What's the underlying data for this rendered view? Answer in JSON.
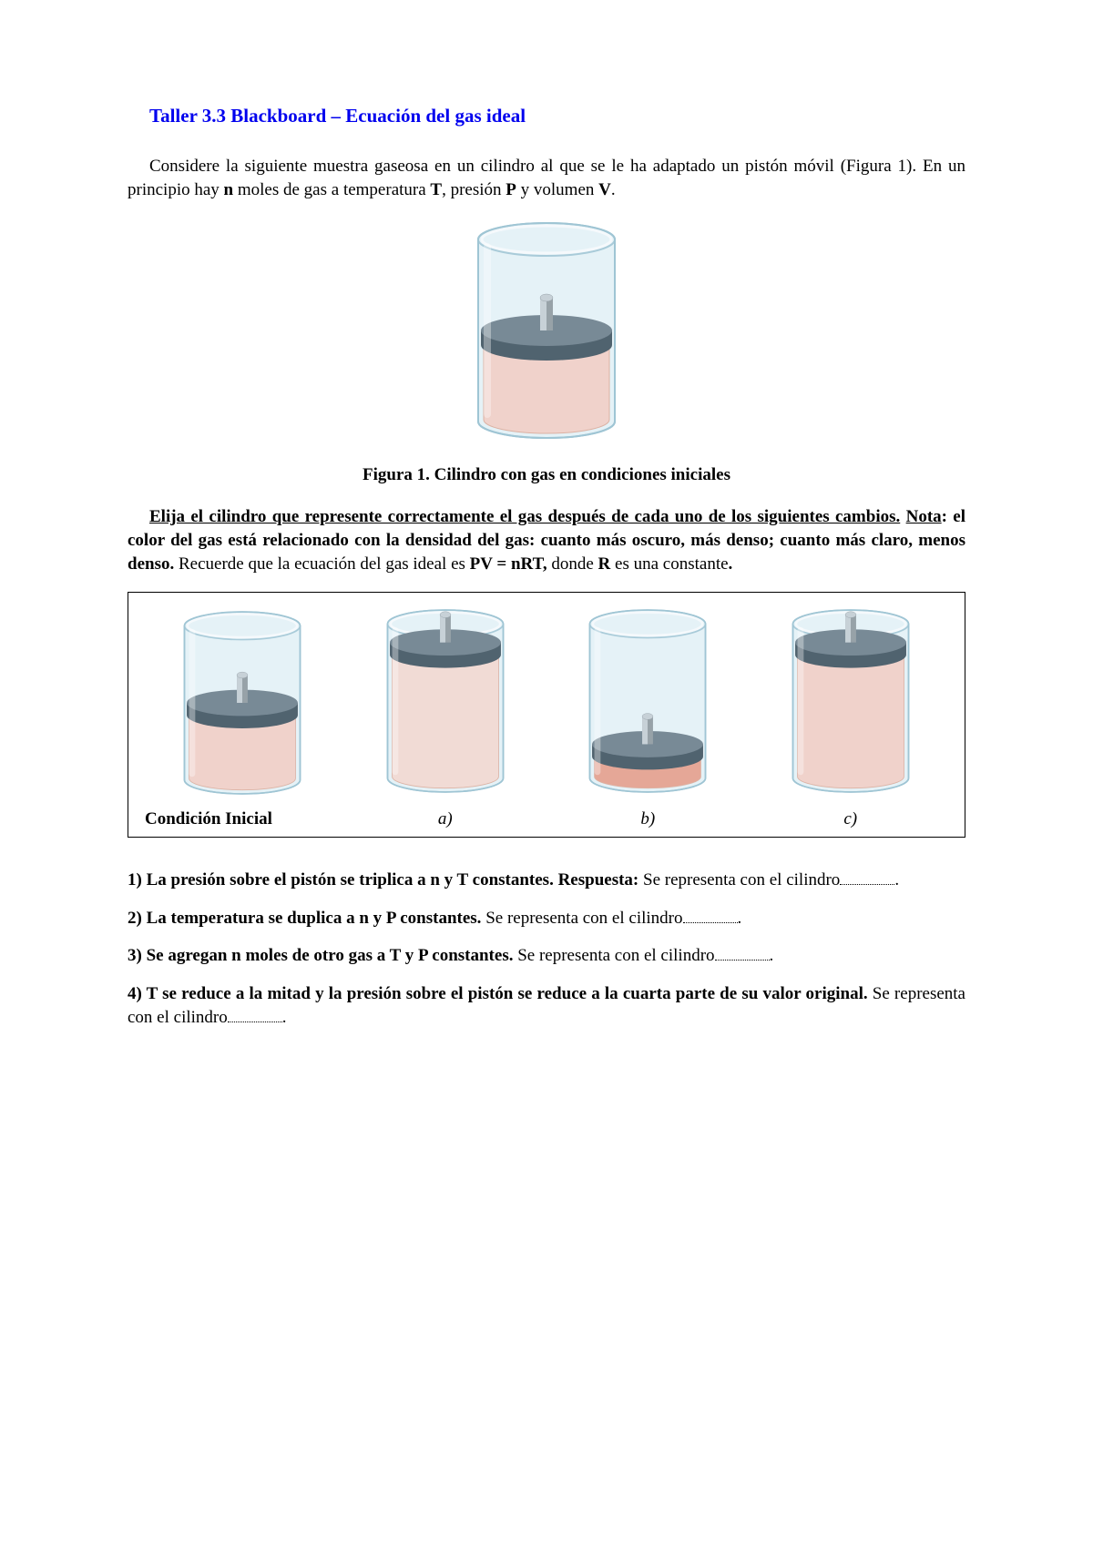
{
  "title": "Taller 3.3 Blackboard – Ecuación del gas ideal",
  "intro": {
    "t1": "Considere la siguiente muestra gaseosa en un cilindro al que se le ha adaptado un pistón móvil (Figura 1). En un principio hay ",
    "n": "n",
    "t2": " moles de gas a temperatura ",
    "T": "T",
    "t3": ", presión ",
    "P": "P",
    "t4": " y volumen ",
    "V": "V",
    "t5": "."
  },
  "fig1": {
    "colors": {
      "glass_light": "#e6f2f7",
      "glass_edge": "#9fc5d4",
      "piston_top": "#667885",
      "piston_side": "#374a57",
      "rod_light": "#c2ccd2",
      "rod_dark": "#8a949b",
      "gas_mid": "#f2cdc4",
      "gas_light": "#f4d7cf",
      "gas_dark": "#e59b87",
      "gas_edge": "#dba795"
    },
    "caption": "Figura 1. Cilindro con gas en condiciones iniciales"
  },
  "instruct": {
    "u1": "Elija el cilindro que represente correctamente el gas después de cada uno de los siguientes cambios.",
    "u2": "Nota",
    "b1": ": el color del gas está relacionado con la densidad del gas: cuanto más oscuro, más denso; cuanto más claro, menos denso.",
    "t1": " Recuerde que la ecuación del gas ideal es ",
    "eq": "PV = nRT,",
    "t2": " donde ",
    "R": "R",
    "t3": " es una constante",
    "dot": "."
  },
  "panel": {
    "initial_label": "Condición Inicial",
    "labels": {
      "a": "a)",
      "b": "b)",
      "c": "c)"
    }
  },
  "questions": {
    "q1": {
      "b": "1) La presión sobre el pistón se triplica a n y T constantes. Respuesta: ",
      "t": "Se representa con el cilindro"
    },
    "q2": {
      "b": "2) La temperatura se duplica a n y P constantes. ",
      "t": "Se representa con el cilindro"
    },
    "q3": {
      "b": "3) Se agregan n moles de otro gas a T y P constantes. ",
      "t": "Se representa con el cilindro"
    },
    "q4": {
      "b": "4) T se reduce a la mitad y la presión sobre el pistón se reduce a la cuarta parte de su valor original. ",
      "t": "Se representa con el cilindro"
    }
  }
}
